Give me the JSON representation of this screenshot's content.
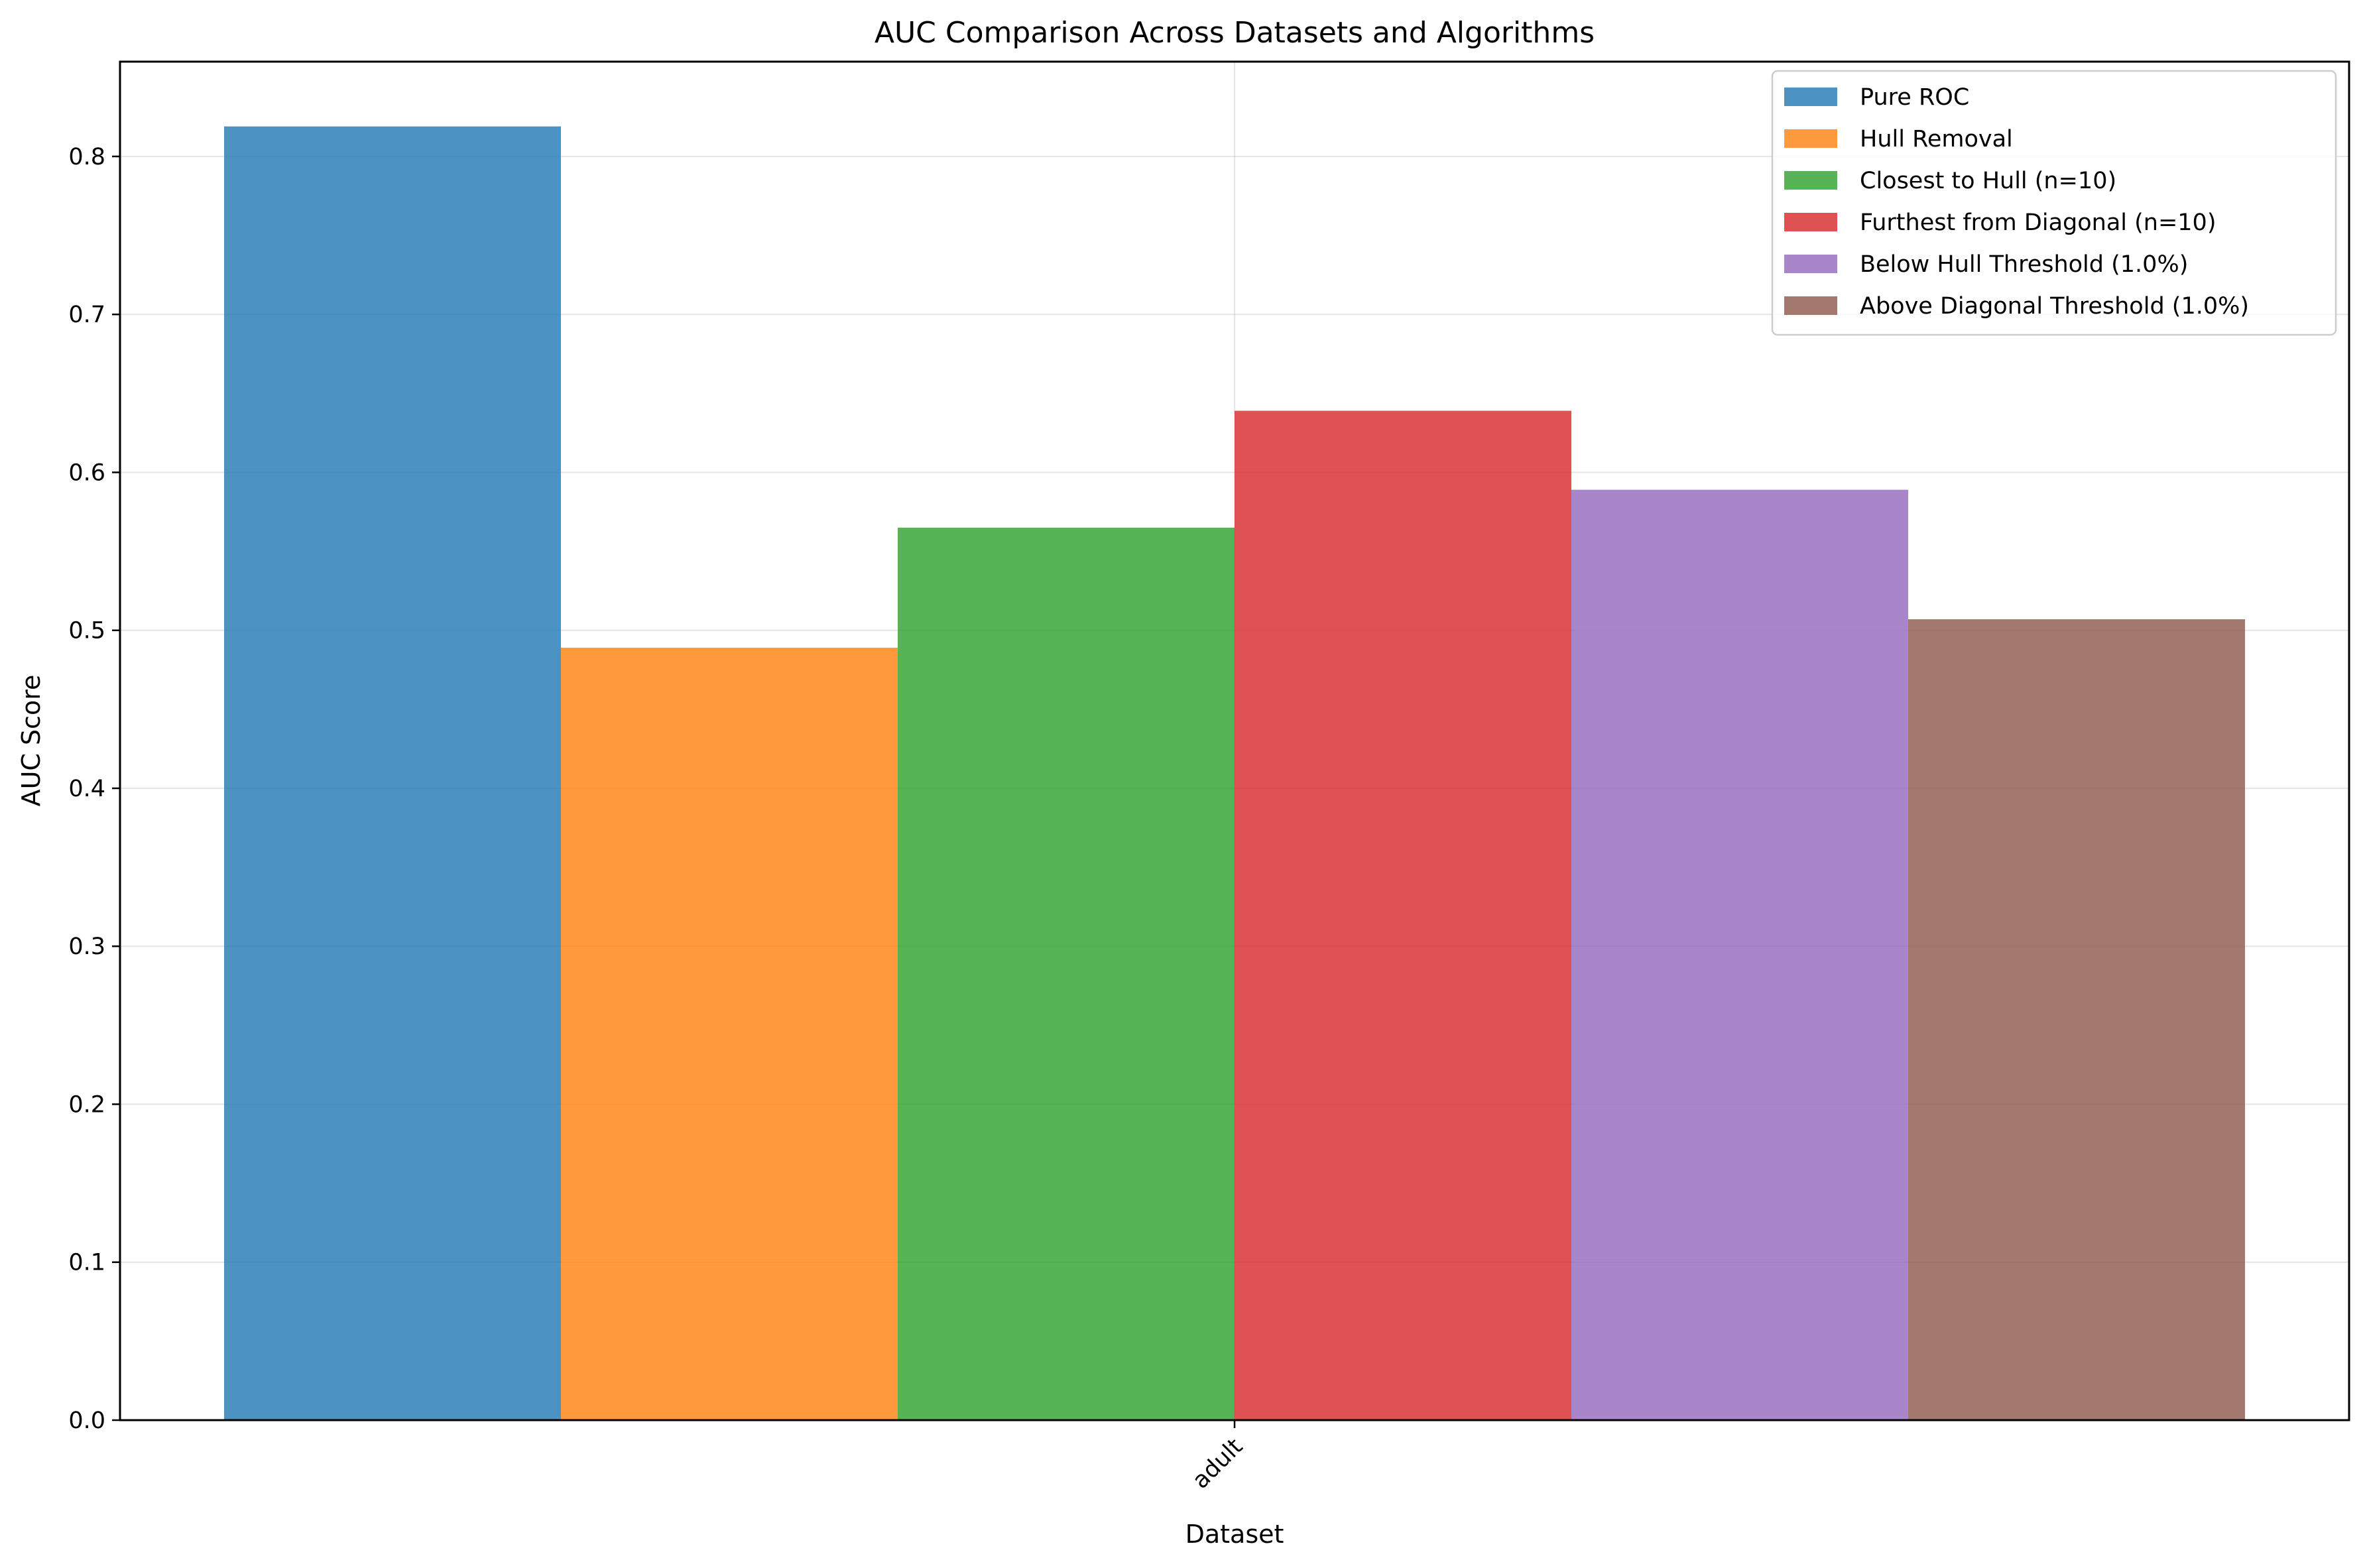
{
  "chart_data": {
    "type": "bar",
    "title": "AUC Comparison Across Datasets and Algorithms",
    "xlabel": "Dataset",
    "ylabel": "AUC Score",
    "categories": [
      "adult"
    ],
    "ylim": [
      0,
      0.86
    ],
    "yticks": [
      0.0,
      0.1,
      0.2,
      0.3,
      0.4,
      0.5,
      0.6,
      0.7,
      0.8
    ],
    "ytick_labels": [
      "0.0",
      "0.1",
      "0.2",
      "0.3",
      "0.4",
      "0.5",
      "0.6",
      "0.7",
      "0.8"
    ],
    "grid": true,
    "legend_position": "top-right",
    "series": [
      {
        "name": "Pure ROC",
        "values": [
          0.819
        ],
        "color": "#1f77b4"
      },
      {
        "name": "Hull Removal",
        "values": [
          0.489
        ],
        "color": "#ff7f0e"
      },
      {
        "name": "Closest to Hull (n=10)",
        "values": [
          0.565
        ],
        "color": "#2ca02c"
      },
      {
        "name": "Furthest from Diagonal (n=10)",
        "values": [
          0.639
        ],
        "color": "#d62728"
      },
      {
        "name": "Below Hull Threshold (1.0%)",
        "values": [
          0.589
        ],
        "color": "#9467bd"
      },
      {
        "name": "Above Diagonal Threshold (1.0%)",
        "values": [
          0.507
        ],
        "color": "#8c564b"
      }
    ]
  }
}
